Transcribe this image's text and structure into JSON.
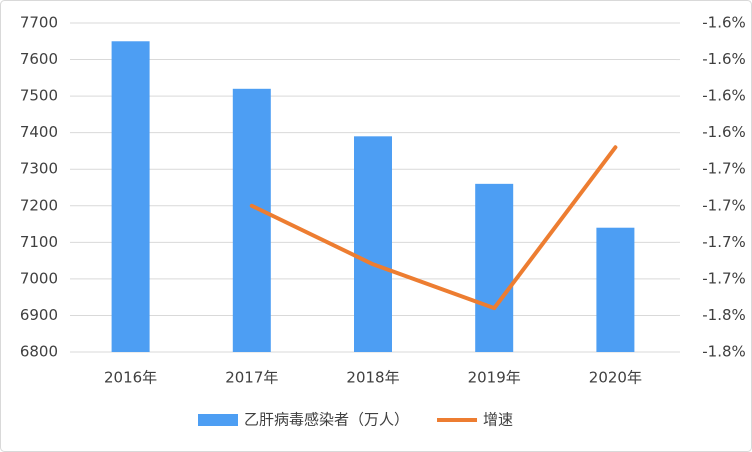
{
  "chart_data": {
    "type": "bar-line",
    "categories": [
      "2016年",
      "2017年",
      "2018年",
      "2019年",
      "2020年"
    ],
    "series": [
      {
        "name": "乙肝病毒感染者（万人）",
        "type": "bar",
        "color": "#4d9ef3",
        "values": [
          7650,
          7520,
          7390,
          7260,
          7140
        ]
      },
      {
        "name": "增速",
        "type": "line",
        "axis": "y2",
        "color": "#ed7d31",
        "values": [
          null,
          -1.7,
          -1.74,
          -1.77,
          -1.66
        ]
      }
    ],
    "ylim": [
      6800,
      7700
    ],
    "yticks": [
      6800,
      6900,
      7000,
      7100,
      7200,
      7300,
      7400,
      7500,
      7600,
      7700
    ],
    "y2lim": [
      -1.8,
      -1.575
    ],
    "y2ticks": [
      {
        "value": -1.8,
        "label": "-1.8%"
      },
      {
        "value": -1.775,
        "label": "-1.8%"
      },
      {
        "value": -1.75,
        "label": "-1.7%"
      },
      {
        "value": -1.725,
        "label": "-1.7%"
      },
      {
        "value": -1.7,
        "label": "-1.7%"
      },
      {
        "value": -1.675,
        "label": "-1.7%"
      },
      {
        "value": -1.65,
        "label": "-1.6%"
      },
      {
        "value": -1.625,
        "label": "-1.6%"
      },
      {
        "value": -1.6,
        "label": "-1.6%"
      },
      {
        "value": -1.575,
        "label": "-1.6%"
      }
    ],
    "grid": true,
    "legend": "bottom"
  }
}
